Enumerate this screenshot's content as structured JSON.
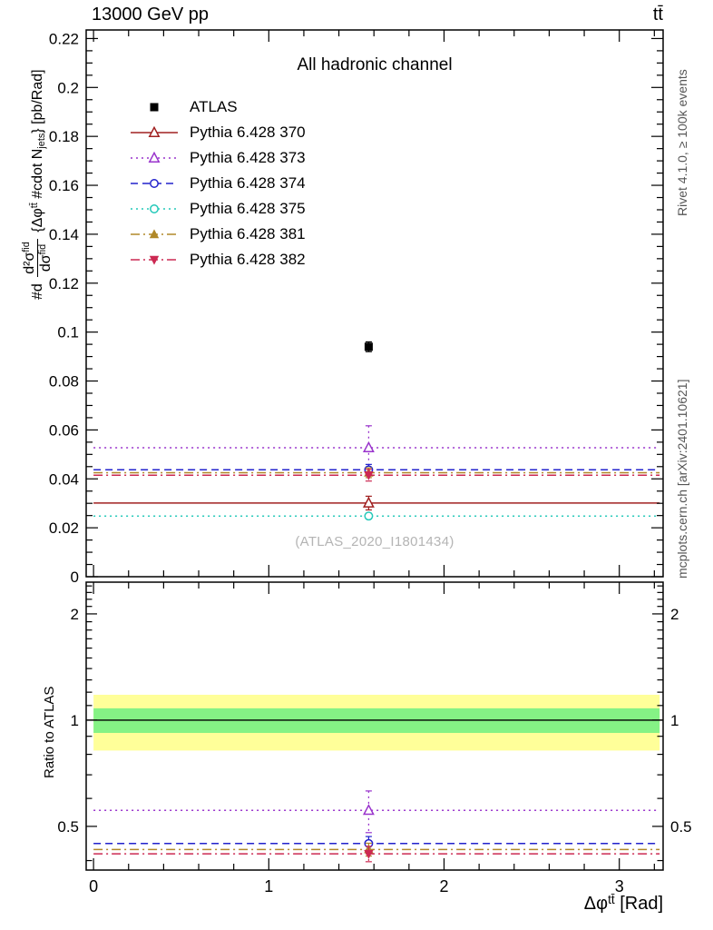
{
  "header": {
    "left": "13000 GeV pp",
    "right": "tt̄"
  },
  "right_notes": {
    "top": "Rivet 4.1.0, ≥ 100k events",
    "bottom": "mcplots.cern.ch [arXiv:2401.10621]"
  },
  "watermark": "(ATLAS_2020_I1801434)",
  "ratio_ylabel": "Ratio to ATLAS",
  "ylabel_parts": {
    "prefix": "#d",
    "frac_num_base": "d²σ",
    "frac_num_sup": "fid",
    "frac_den_base": "dσ",
    "frac_den_sup": "fid",
    "open": " {Δφ",
    "sup": "tt̄",
    "mid": " #cdot N",
    "sub": "jets",
    "close": "} [pb/Rad]"
  },
  "xlabel_parts": {
    "base": "Δφ",
    "sup": "tt̄",
    "rest": " [Rad]"
  },
  "chart_data": {
    "type": "line",
    "title": "All hadronic channel",
    "xlabel": "Δφ^{tt̄} [Rad]",
    "ylabel": "#d d²σ^{fid}/dσ^{fid} {Δφ^{tt̄} #cdot N_{jets}} [pb/Rad]",
    "ratio_label": "Ratio to ATLAS",
    "legend_position": "top-left",
    "grid": false,
    "x_range": [
      -0.042,
      3.25
    ],
    "data_x_span": [
      0,
      3.23
    ],
    "point_x": 1.57,
    "x_major_ticks": [
      {
        "v": 0,
        "label": "0"
      },
      {
        "v": 1,
        "label": "1"
      },
      {
        "v": 2,
        "label": "2"
      },
      {
        "v": 3,
        "label": "3"
      }
    ],
    "x_minor_step": 0.2,
    "main_panel": {
      "y_max": 0.2235,
      "y_major_step": 0.02,
      "y_minor_step": 0.005,
      "y_major_ticks": [
        {
          "v": 0,
          "label": "0"
        },
        {
          "v": 0.02,
          "label": "0.02"
        },
        {
          "v": 0.04,
          "label": "0.04"
        },
        {
          "v": 0.06,
          "label": "0.06"
        },
        {
          "v": 0.08,
          "label": "0.08"
        },
        {
          "v": 0.1,
          "label": "0.1"
        },
        {
          "v": 0.12,
          "label": "0.12"
        },
        {
          "v": 0.14,
          "label": "0.14"
        },
        {
          "v": 0.16,
          "label": "0.16"
        },
        {
          "v": 0.18,
          "label": "0.18"
        },
        {
          "v": 0.2,
          "label": "0.2"
        },
        {
          "v": 0.22,
          "label": "0.22"
        }
      ]
    },
    "ratio_panel": {
      "scale": "log",
      "y_range": [
        0.376,
        2.46
      ],
      "y_major_ticks": [
        {
          "v": 0.5,
          "label": "0.5"
        },
        {
          "v": 1,
          "label": "1"
        },
        {
          "v": 2,
          "label": "2"
        }
      ],
      "y_minor_ticks": [
        0.4,
        0.6,
        0.7,
        0.8,
        0.9,
        1.1,
        1.2,
        1.3,
        1.4,
        1.5,
        1.6,
        1.7,
        1.8,
        1.9,
        2.1,
        2.2,
        2.3,
        2.4
      ],
      "bands": [
        {
          "name": "atlas-uncertainty-outer",
          "lo": 0.82,
          "hi": 1.18,
          "color": "#ffff99"
        },
        {
          "name": "atlas-uncertainty-inner",
          "lo": 0.92,
          "hi": 1.08,
          "color": "#85f285"
        }
      ],
      "reference_line": 1.0
    },
    "series": [
      {
        "id": "atlas",
        "label": "ATLAS",
        "color": "#000000",
        "line": "none",
        "dash": "",
        "marker": "square-filled",
        "value": 0.094,
        "err": 0.002,
        "ratio": null,
        "ratio_err": null
      },
      {
        "id": "pythia-6428-370",
        "label": "Pythia 6.428 370",
        "color": "#a02020",
        "line": "solid",
        "dash": "",
        "marker": "triangle-open",
        "value": 0.0301,
        "err": 0.0028,
        "ratio": null,
        "ratio_err": null
      },
      {
        "id": "pythia-6428-373",
        "label": "Pythia 6.428 373",
        "color": "#9933cc",
        "line": "dotted",
        "dash": "2 4",
        "marker": "triangle-open",
        "value": 0.0527,
        "err": 0.009,
        "ratio": 0.555,
        "ratio_err": 0.075
      },
      {
        "id": "pythia-6428-374",
        "label": "Pythia 6.428 374",
        "color": "#2222cc",
        "line": "dashed",
        "dash": "8 5",
        "marker": "circle-open",
        "value": 0.0437,
        "err": 0.0022,
        "ratio": 0.447,
        "ratio_err": 0.021
      },
      {
        "id": "pythia-6428-375",
        "label": "Pythia 6.428 375",
        "color": "#22c8b8",
        "line": "dotted",
        "dash": "2 4",
        "marker": "circle-open",
        "value": 0.0248,
        "err": 0.0012,
        "ratio": null,
        "ratio_err": null
      },
      {
        "id": "pythia-6428-381",
        "label": "Pythia 6.428 381",
        "color": "#b08828",
        "line": "dashdot",
        "dash": "10 4 2 4",
        "marker": "triangle-filled",
        "value": 0.0425,
        "err": 0.002,
        "ratio": 0.43,
        "ratio_err": 0.018
      },
      {
        "id": "pythia-6428-382",
        "label": "Pythia 6.428 382",
        "color": "#cc2952",
        "line": "dashdot",
        "dash": "10 4 2 4",
        "marker": "triangle-down-filled",
        "value": 0.0415,
        "err": 0.0024,
        "ratio": 0.418,
        "ratio_err": 0.021
      }
    ]
  }
}
